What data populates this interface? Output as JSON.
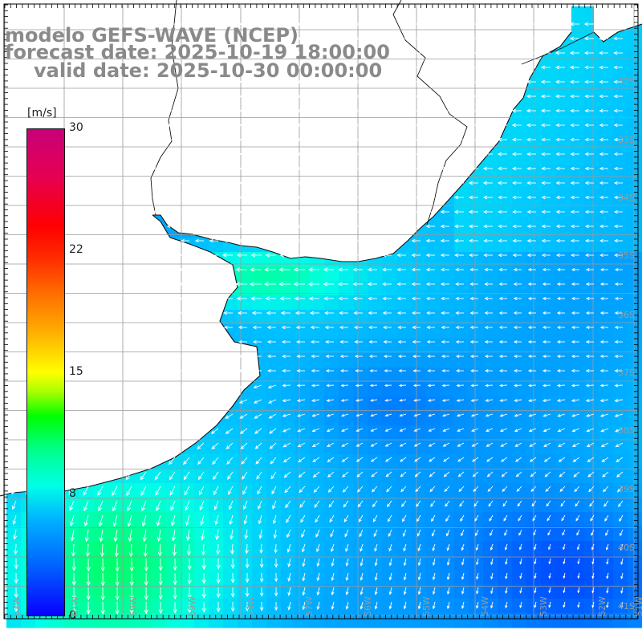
{
  "header": {
    "line1": "modelo GEFS-WAVE (NCEP)",
    "line2": "forecast date: 2025-10-19 18:00:00",
    "line3": "valid date: 2025-10-30 00:00:00"
  },
  "colorbar": {
    "unit": "[m/s]",
    "ticks": [
      "30",
      "22",
      "15",
      "8",
      "0"
    ],
    "colors": [
      "#0a00ff",
      "#0060ff",
      "#00b4ff",
      "#00ffe6",
      "#00ff8c",
      "#00ff00",
      "#a8ff00",
      "#ffff00",
      "#ffb000",
      "#ff7800",
      "#ff3000",
      "#ff0000",
      "#e60050",
      "#c8007a"
    ]
  },
  "latitude_labels": [
    "32S",
    "33S",
    "34S",
    "35S",
    "36S",
    "37S",
    "38S",
    "39S",
    "40S",
    "41S"
  ],
  "longitude_labels": [
    "62W",
    "61W",
    "60W",
    "59W",
    "58W",
    "57W",
    "56W",
    "55W",
    "54W",
    "53W",
    "52W",
    "51W"
  ],
  "land_color": "#ffffff",
  "grid_color": "#9a9a9a",
  "arrow_color": "#ffffff"
}
